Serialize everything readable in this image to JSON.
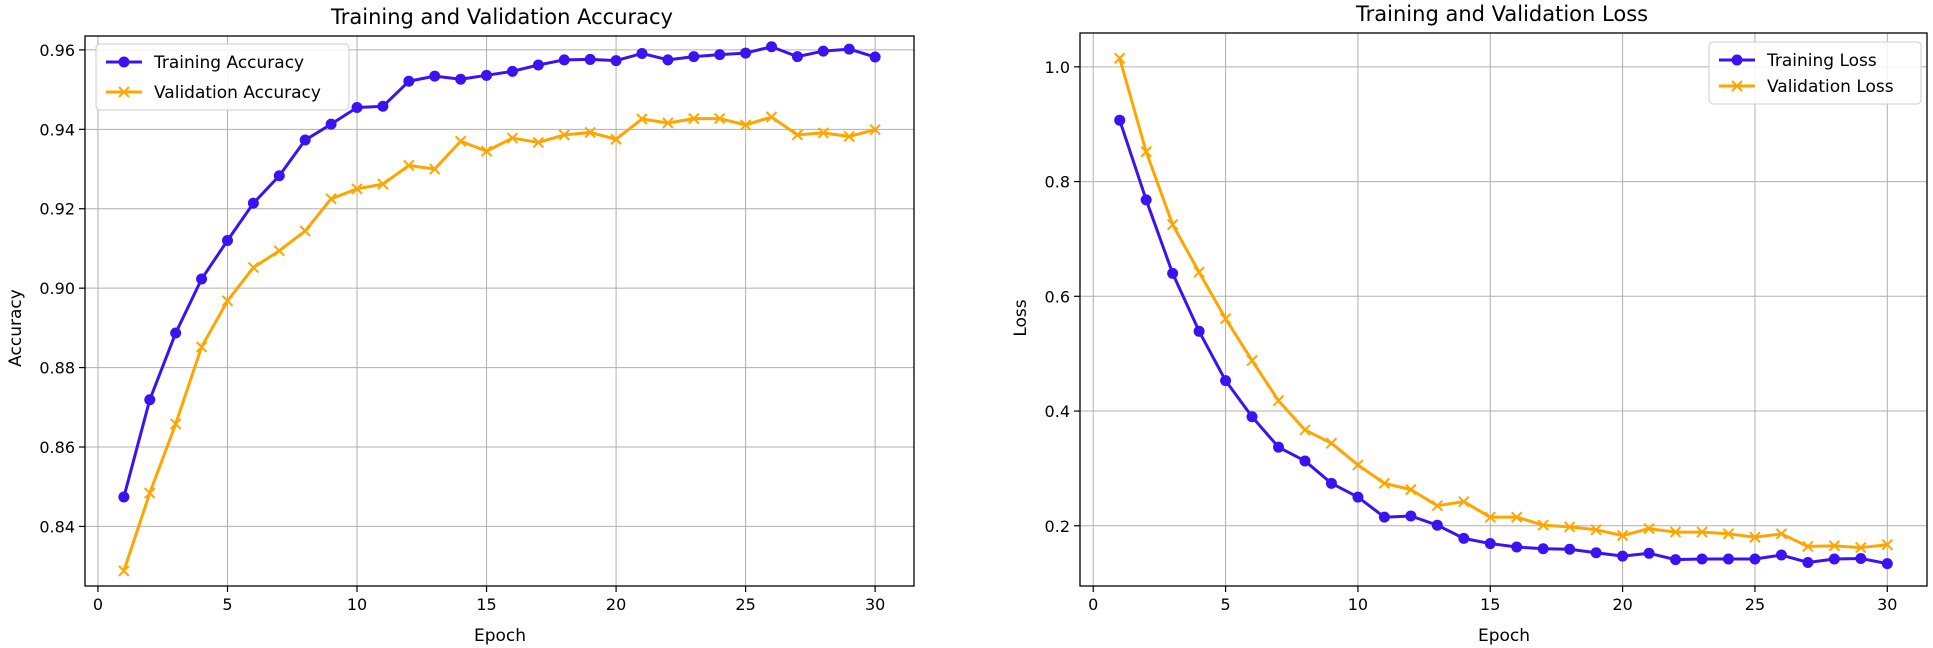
{
  "chart_data": [
    {
      "type": "line",
      "title": "Training and Validation Accuracy",
      "xlabel": "Epoch",
      "ylabel": "Accuracy",
      "xlim": [
        -0.5,
        31.5
      ],
      "ylim": [
        0.825,
        0.9635
      ],
      "xticks": [
        0,
        5,
        10,
        15,
        20,
        25,
        30
      ],
      "yticks": [
        0.84,
        0.86,
        0.88,
        0.9,
        0.92,
        0.94,
        0.96
      ],
      "ytick_labels": [
        "0.84",
        "0.86",
        "0.88",
        "0.90",
        "0.92",
        "0.94",
        "0.96"
      ],
      "grid": true,
      "legend_position": "upper-left",
      "x": [
        1,
        2,
        3,
        4,
        5,
        6,
        7,
        8,
        9,
        10,
        11,
        12,
        13,
        14,
        15,
        16,
        17,
        18,
        19,
        20,
        21,
        22,
        23,
        24,
        25,
        26,
        27,
        28,
        29,
        30
      ],
      "series": [
        {
          "name": "Training Accuracy",
          "color": "#3d12f2",
          "marker": "circle",
          "values": [
            0.8474,
            0.8719,
            0.8887,
            0.9023,
            0.912,
            0.9214,
            0.9283,
            0.9373,
            0.9413,
            0.9455,
            0.9458,
            0.9521,
            0.9534,
            0.9526,
            0.9536,
            0.9546,
            0.9562,
            0.9575,
            0.9576,
            0.9573,
            0.9591,
            0.9575,
            0.9583,
            0.9588,
            0.9592,
            0.9608,
            0.9583,
            0.9597,
            0.9602,
            0.9582
          ]
        },
        {
          "name": "Validation Accuracy",
          "color": "#ffa500",
          "marker": "x",
          "values": [
            0.8288,
            0.8484,
            0.8658,
            0.8852,
            0.8968,
            0.9052,
            0.9094,
            0.9144,
            0.9225,
            0.925,
            0.9262,
            0.9309,
            0.93,
            0.937,
            0.9345,
            0.9378,
            0.9367,
            0.9386,
            0.9392,
            0.9375,
            0.9426,
            0.9416,
            0.9427,
            0.9427,
            0.9411,
            0.9431,
            0.9386,
            0.9391,
            0.9382,
            0.9399
          ]
        }
      ]
    },
    {
      "type": "line",
      "title": "Training and Validation Loss",
      "xlabel": "Epoch",
      "ylabel": "Loss",
      "xlim": [
        -0.5,
        31.5
      ],
      "ylim": [
        0.095,
        1.059
      ],
      "xticks": [
        0,
        5,
        10,
        15,
        20,
        25,
        30
      ],
      "yticks": [
        0.2,
        0.4,
        0.6,
        0.8,
        1.0
      ],
      "ytick_labels": [
        "0.2",
        "0.4",
        "0.6",
        "0.8",
        "1.0"
      ],
      "grid": true,
      "legend_position": "upper-right",
      "x": [
        1,
        2,
        3,
        4,
        5,
        6,
        7,
        8,
        9,
        10,
        11,
        12,
        13,
        14,
        15,
        16,
        17,
        18,
        19,
        20,
        21,
        22,
        23,
        24,
        25,
        26,
        27,
        28,
        29,
        30
      ],
      "series": [
        {
          "name": "Training Loss",
          "color": "#3d12f2",
          "marker": "circle",
          "values": [
            0.907,
            0.768,
            0.64,
            0.539,
            0.453,
            0.39,
            0.337,
            0.313,
            0.274,
            0.25,
            0.215,
            0.217,
            0.201,
            0.178,
            0.169,
            0.163,
            0.16,
            0.159,
            0.153,
            0.147,
            0.152,
            0.141,
            0.142,
            0.142,
            0.142,
            0.149,
            0.136,
            0.142,
            0.143,
            0.134
          ]
        },
        {
          "name": "Validation Loss",
          "color": "#ffa500",
          "marker": "x",
          "values": [
            1.015,
            0.852,
            0.725,
            0.642,
            0.561,
            0.488,
            0.418,
            0.367,
            0.344,
            0.306,
            0.274,
            0.263,
            0.235,
            0.242,
            0.215,
            0.215,
            0.201,
            0.198,
            0.193,
            0.183,
            0.195,
            0.189,
            0.189,
            0.186,
            0.18,
            0.186,
            0.164,
            0.165,
            0.162,
            0.167
          ]
        }
      ]
    }
  ]
}
